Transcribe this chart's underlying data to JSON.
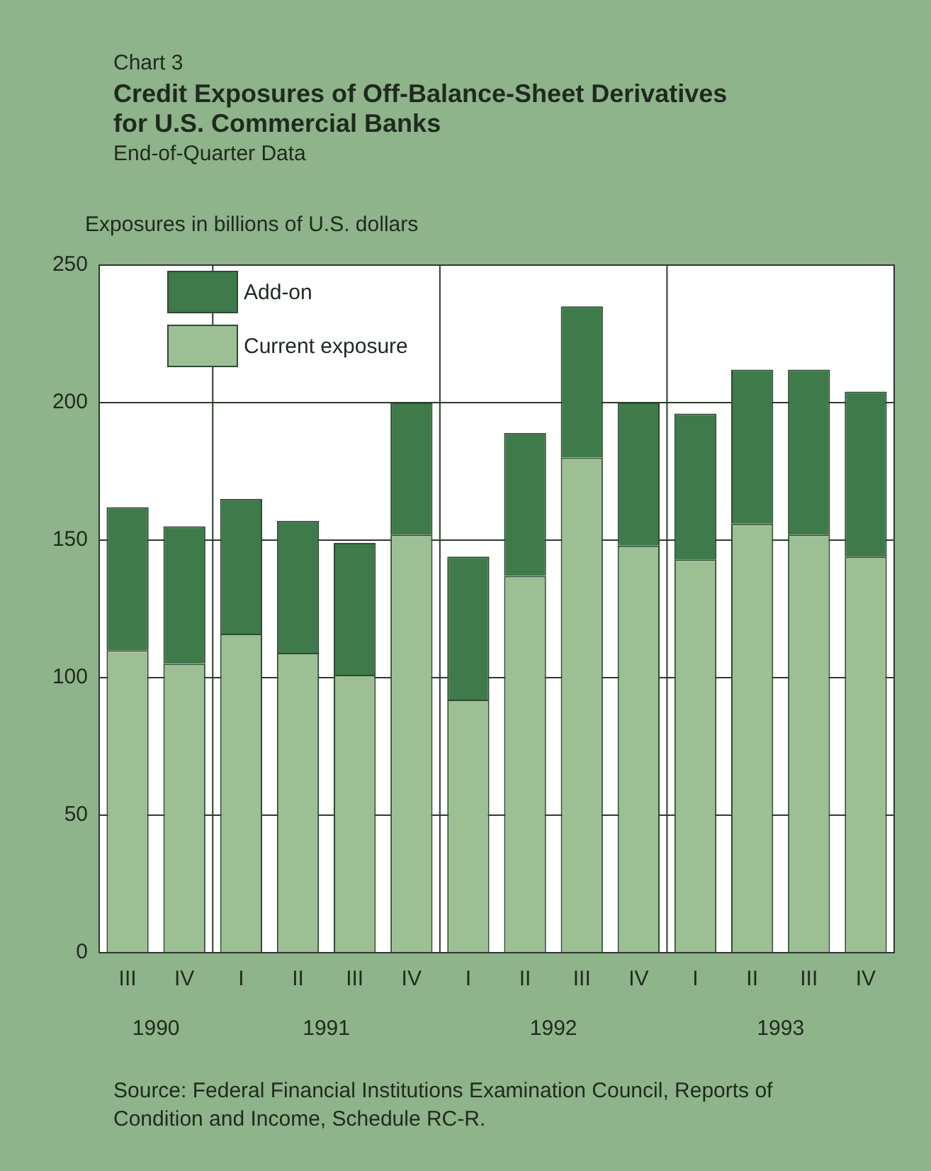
{
  "chart_data": {
    "type": "bar",
    "title": "Credit Exposures of Off-Balance-Sheet Derivatives for U.S. Commercial Banks",
    "subtitle": "End-of-Quarter Data",
    "ylabel": "Exposures in billions of U.S. dollars",
    "categories": [
      "III",
      "IV",
      "I",
      "II",
      "III",
      "IV",
      "I",
      "II",
      "III",
      "IV",
      "I",
      "II",
      "III",
      "IV"
    ],
    "stacked": true,
    "series": [
      {
        "name": "Current exposure",
        "color": "#9dbf94",
        "values": [
          110,
          105,
          116,
          109,
          101,
          152,
          92,
          137,
          180,
          148,
          143,
          156,
          152,
          144
        ]
      },
      {
        "name": "Add-on",
        "color": "#3f7a4a",
        "values": [
          52,
          50,
          49,
          48,
          48,
          48,
          52,
          52,
          55,
          52,
          53,
          56,
          60,
          60
        ]
      }
    ],
    "ylim": [
      0,
      250
    ],
    "yticks": [
      0,
      50,
      100,
      150,
      200,
      250
    ],
    "grid": "y",
    "legend": "top left",
    "annotations": [
      "Chart 3",
      "1990",
      "1991",
      "1992",
      "1993",
      "Source:  Federal Financial Institutions Examination Council, Reports of Condition and Income, Schedule RC-R."
    ]
  }
}
